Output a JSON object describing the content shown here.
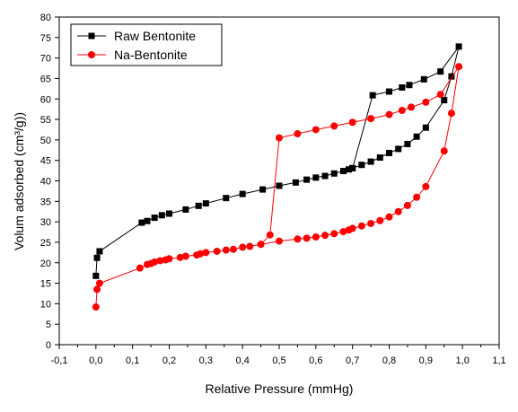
{
  "chart_data": {
    "type": "line",
    "title": "",
    "xlabel": "Relative Pressure (mmHg)",
    "ylabel": "Volum adsorbed (cm³/g))",
    "xlim": [
      -0.1,
      1.1
    ],
    "ylim": [
      0,
      80
    ],
    "x_ticks": [
      -0.1,
      0.0,
      0.1,
      0.2,
      0.3,
      0.4,
      0.5,
      0.6,
      0.7,
      0.8,
      0.9,
      1.0,
      1.1
    ],
    "x_tick_labels": [
      "-0,1",
      "0,0",
      "0,1",
      "0,2",
      "0,3",
      "0,4",
      "0,5",
      "0,6",
      "0,7",
      "0,8",
      "0,9",
      "1,0",
      "1,1"
    ],
    "y_ticks": [
      0,
      5,
      10,
      15,
      20,
      25,
      30,
      35,
      40,
      45,
      50,
      55,
      60,
      65,
      70,
      75,
      80
    ],
    "y_tick_labels": [
      "0",
      "5",
      "10",
      "15",
      "20",
      "25",
      "30",
      "35",
      "40",
      "45",
      "50",
      "55",
      "60",
      "65",
      "70",
      "75",
      "80"
    ],
    "legend_position": "top-left",
    "grid": false,
    "series": [
      {
        "name": "Raw Bentonite",
        "color": "#000000",
        "marker": "square",
        "points": [
          [
            0.0,
            16.8
          ],
          [
            0.003,
            21.2
          ],
          [
            0.01,
            22.8
          ],
          [
            0.125,
            29.8
          ],
          [
            0.14,
            30.2
          ],
          [
            0.16,
            31.0
          ],
          [
            0.18,
            31.6
          ],
          [
            0.2,
            32.0
          ],
          [
            0.245,
            33.0
          ],
          [
            0.28,
            33.9
          ],
          [
            0.3,
            34.5
          ],
          [
            0.355,
            35.8
          ],
          [
            0.4,
            36.8
          ],
          [
            0.455,
            37.9
          ],
          [
            0.5,
            38.8
          ],
          [
            0.545,
            39.6
          ],
          [
            0.575,
            40.3
          ],
          [
            0.6,
            40.8
          ],
          [
            0.625,
            41.2
          ],
          [
            0.65,
            41.8
          ],
          [
            0.675,
            42.4
          ],
          [
            0.69,
            42.8
          ],
          [
            0.7,
            43.1
          ],
          [
            0.725,
            43.9
          ],
          [
            0.75,
            44.7
          ],
          [
            0.775,
            45.7
          ],
          [
            0.8,
            46.8
          ],
          [
            0.825,
            47.8
          ],
          [
            0.85,
            49.0
          ],
          [
            0.875,
            50.8
          ],
          [
            0.9,
            53.0
          ],
          [
            0.95,
            59.7
          ],
          [
            0.97,
            65.5
          ],
          [
            0.99,
            72.8
          ],
          [
            0.94,
            66.7
          ],
          [
            0.895,
            64.8
          ],
          [
            0.855,
            63.4
          ],
          [
            0.835,
            62.8
          ],
          [
            0.8,
            61.8
          ],
          [
            0.755,
            60.9
          ],
          [
            0.7,
            43.1
          ]
        ]
      },
      {
        "name": "Na-Bentonite",
        "color": "#ff0000",
        "marker": "circle",
        "points": [
          [
            0.0,
            9.2
          ],
          [
            0.003,
            13.5
          ],
          [
            0.01,
            15.0
          ],
          [
            0.12,
            18.7
          ],
          [
            0.14,
            19.6
          ],
          [
            0.15,
            19.8
          ],
          [
            0.16,
            20.2
          ],
          [
            0.175,
            20.5
          ],
          [
            0.19,
            20.7
          ],
          [
            0.2,
            21.0
          ],
          [
            0.23,
            21.3
          ],
          [
            0.245,
            21.6
          ],
          [
            0.275,
            21.9
          ],
          [
            0.285,
            22.2
          ],
          [
            0.3,
            22.5
          ],
          [
            0.33,
            22.8
          ],
          [
            0.355,
            23.1
          ],
          [
            0.375,
            23.3
          ],
          [
            0.4,
            23.8
          ],
          [
            0.42,
            24.0
          ],
          [
            0.45,
            24.5
          ],
          [
            0.5,
            25.3
          ],
          [
            0.55,
            25.8
          ],
          [
            0.575,
            26.0
          ],
          [
            0.6,
            26.3
          ],
          [
            0.625,
            26.7
          ],
          [
            0.65,
            27.1
          ],
          [
            0.675,
            27.6
          ],
          [
            0.69,
            28.0
          ],
          [
            0.7,
            28.4
          ],
          [
            0.725,
            29.0
          ],
          [
            0.75,
            29.6
          ],
          [
            0.775,
            30.3
          ],
          [
            0.8,
            31.2
          ],
          [
            0.825,
            32.5
          ],
          [
            0.85,
            34.0
          ],
          [
            0.875,
            36.0
          ],
          [
            0.9,
            38.6
          ],
          [
            0.95,
            47.3
          ],
          [
            0.97,
            56.5
          ],
          [
            0.99,
            67.9
          ],
          [
            0.94,
            61.1
          ],
          [
            0.9,
            59.2
          ],
          [
            0.86,
            58.0
          ],
          [
            0.835,
            57.2
          ],
          [
            0.8,
            56.2
          ],
          [
            0.75,
            55.2
          ],
          [
            0.7,
            54.3
          ],
          [
            0.65,
            53.4
          ],
          [
            0.6,
            52.5
          ],
          [
            0.55,
            51.5
          ],
          [
            0.5,
            50.5
          ],
          [
            0.475,
            26.8
          ],
          [
            0.45,
            24.5
          ]
        ]
      }
    ]
  }
}
